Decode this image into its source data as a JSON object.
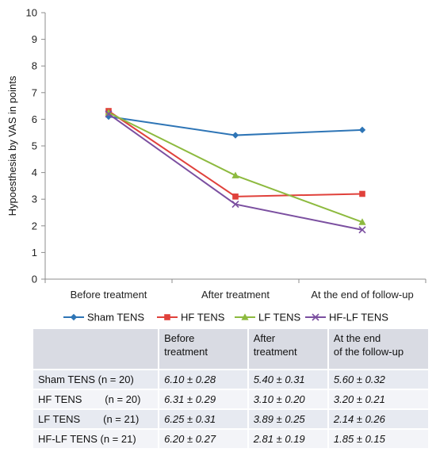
{
  "chart_data": {
    "type": "line",
    "categories": [
      "Before treatment",
      "After treatment",
      "At the end of follow-up"
    ],
    "ylabel": "Hypoesthesia by VAS in points",
    "xlabel": "",
    "ylim": [
      0,
      10
    ],
    "yticks": [
      0,
      1,
      2,
      3,
      4,
      5,
      6,
      7,
      8,
      9,
      10
    ],
    "grid": false,
    "legend_position": "bottom",
    "series": [
      {
        "name": "Sham TENS",
        "values": [
          6.1,
          5.4,
          5.6
        ],
        "color": "#2e75b6",
        "marker": "diamond"
      },
      {
        "name": "HF TENS",
        "values": [
          6.31,
          3.1,
          3.2
        ],
        "color": "#e0413b",
        "marker": "square"
      },
      {
        "name": "LF TENS",
        "values": [
          6.25,
          3.89,
          2.14
        ],
        "color": "#8dba3f",
        "marker": "triangle"
      },
      {
        "name": "HF-LF TENS",
        "values": [
          6.2,
          2.81,
          1.85
        ],
        "color": "#7b4fa0",
        "marker": "x"
      }
    ]
  },
  "table": {
    "headers": [
      "",
      "Before\ntreatment",
      "After\ntreatment",
      "At the end\nof the follow-up"
    ],
    "rows": [
      {
        "label": "Sham TENS (n = 20)",
        "values": [
          "6.10 ± 0.28",
          "5.40 ± 0.31",
          "5.60 ± 0.32"
        ]
      },
      {
        "label": "HF TENS        (n = 20)",
        "values": [
          "6.31 ± 0.29",
          "3.10 ± 0.20",
          "3.20 ± 0.21"
        ]
      },
      {
        "label": "LF TENS        (n = 21)",
        "values": [
          "6.25 ± 0.31",
          "3.89 ± 0.25",
          "2.14 ± 0.26"
        ]
      },
      {
        "label": "HF-LF TENS (n = 21)",
        "values": [
          "6.20 ± 0.27",
          "2.81 ± 0.19",
          "1.85 ± 0.15"
        ]
      }
    ]
  }
}
